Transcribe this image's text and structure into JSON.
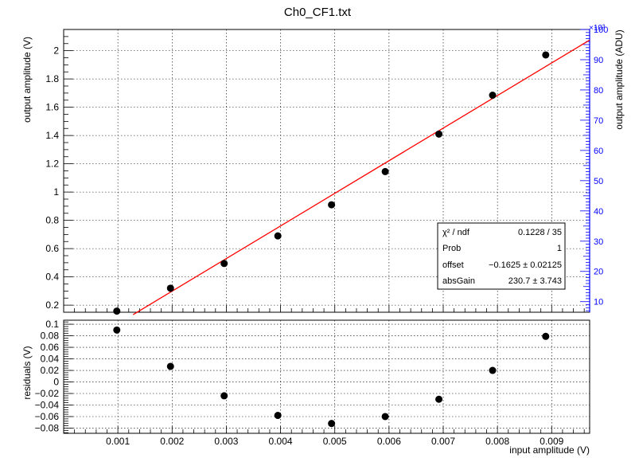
{
  "title": "Ch0_CF1.txt",
  "colors": {
    "fit": "#ff0000",
    "points": "#000000",
    "right_axis": "#0000ff",
    "grid": "#000000"
  },
  "chart_data": [
    {
      "type": "scatter",
      "panel": "top",
      "title": "Ch0_CF1.txt",
      "xlabel": "",
      "ylabel": "output amplitude (V)",
      "y2label": "output amplitude (ADU)",
      "y2_exponent_label": "×10³",
      "xlim": [
        0,
        0.0097
      ],
      "ylim": [
        0.15,
        2.15
      ],
      "y2lim": [
        6.5,
        100
      ],
      "grid": true,
      "y_ticks": [
        "0.2",
        "0.4",
        "0.6",
        "0.8",
        "1",
        "1.2",
        "1.4",
        "1.6",
        "1.8",
        "2"
      ],
      "y2_ticks": [
        "10",
        "20",
        "30",
        "40",
        "50",
        "60",
        "70",
        "80",
        "90",
        "100"
      ],
      "series": [
        {
          "name": "",
          "x": [
            0.00098,
            0.00197,
            0.00296,
            0.00395,
            0.00494,
            0.00593,
            0.00692,
            0.00791,
            0.00889
          ],
          "y": [
            0.158,
            0.32,
            0.495,
            0.69,
            0.91,
            1.145,
            1.41,
            1.685,
            1.97
          ]
        }
      ],
      "fit": {
        "x": [
          0.00128,
          0.0097
        ],
        "y": [
          0.133,
          2.075
        ]
      },
      "stats_box": {
        "rows": [
          {
            "label": "χ² / ndf",
            "value": "0.1228 / 35"
          },
          {
            "label": "Prob",
            "value": "1"
          },
          {
            "label": "offset",
            "value": "−0.1625 ± 0.02125"
          },
          {
            "label": "absGain",
            "value": "230.7 ± 3.743"
          }
        ]
      }
    },
    {
      "type": "scatter",
      "panel": "bottom",
      "title": "",
      "xlabel": "input amplitude (V)",
      "ylabel": "residuals (V)",
      "xlim": [
        0,
        0.0097
      ],
      "ylim": [
        -0.089,
        0.107
      ],
      "grid": true,
      "x_ticks": [
        "0.001",
        "0.002",
        "0.003",
        "0.004",
        "0.005",
        "0.006",
        "0.007",
        "0.008",
        "0.009"
      ],
      "y_ticks": [
        "−0.08",
        "−0.06",
        "−0.04",
        "−0.02",
        "0",
        "0.02",
        "0.04",
        "0.06",
        "0.08",
        "0.1"
      ],
      "series": [
        {
          "name": "",
          "x": [
            0.00098,
            0.00197,
            0.00296,
            0.00395,
            0.00494,
            0.00593,
            0.00692,
            0.00791,
            0.00889
          ],
          "y": [
            0.09,
            0.027,
            -0.024,
            -0.058,
            -0.072,
            -0.06,
            -0.03,
            0.02,
            0.079
          ]
        }
      ]
    }
  ]
}
